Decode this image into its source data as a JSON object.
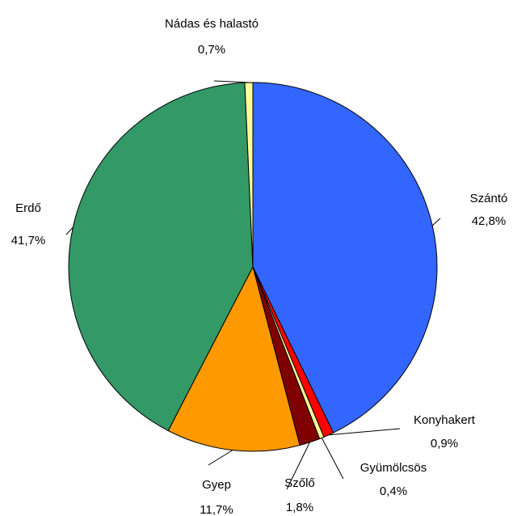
{
  "chart_data": {
    "type": "pie",
    "categories": [
      "Szántó",
      "Konyhakert",
      "Gyümölcsös",
      "Szőlő",
      "Gyep",
      "Erdő",
      "Nádas és halastó"
    ],
    "values": [
      42.8,
      0.9,
      0.4,
      1.8,
      11.7,
      41.7,
      0.7
    ],
    "value_labels": [
      "42,8%",
      "0,9%",
      "0,4%",
      "1,8%",
      "11,7%",
      "41,7%",
      "0,7%"
    ],
    "colors": [
      "#3366ff",
      "#ff0000",
      "#ffff99",
      "#800000",
      "#ff9900",
      "#339966",
      "#ffff99"
    ]
  }
}
